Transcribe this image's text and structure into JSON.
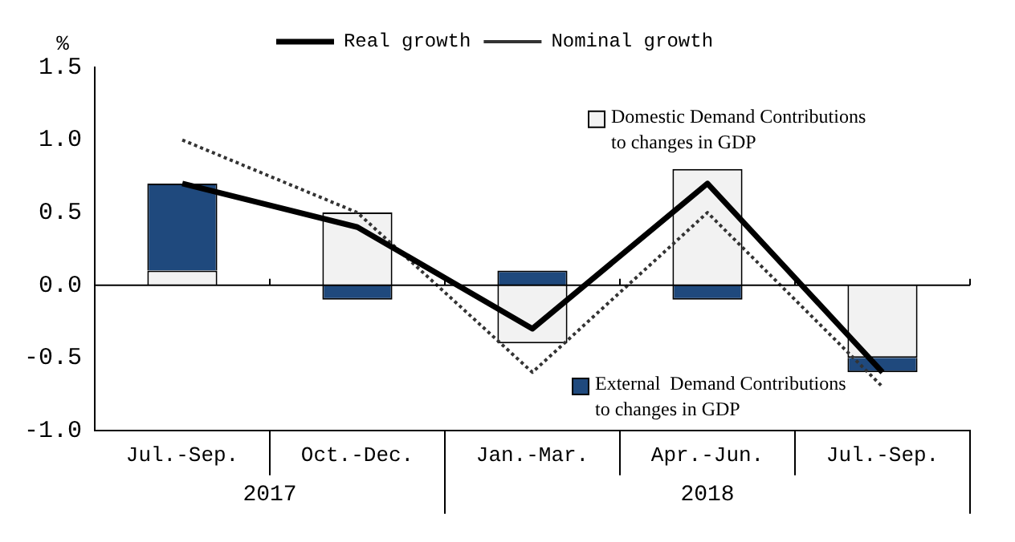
{
  "chart_data": {
    "type": "bar",
    "stacked": true,
    "ylabel": "%",
    "categories": [
      "Jul.-Sep.",
      "Oct.-Dec.",
      "Jan.-Mar.",
      "Apr.-Jun.",
      "Jul.-Sep."
    ],
    "series": [
      {
        "name": "Domestic Demand Contributions to changes in GDP",
        "color": "#f2f2f2",
        "values": [
          0.1,
          0.5,
          -0.4,
          0.8,
          -0.5
        ]
      },
      {
        "name": "External  Demand Contributions to changes in GDP",
        "color": "#1f497d",
        "values": [
          0.6,
          -0.1,
          0.1,
          -0.1,
          -0.1
        ]
      },
      {
        "name": "Real growth",
        "type": "line",
        "color": "#000000",
        "line_style": "solid",
        "values": [
          0.7,
          0.4,
          -0.3,
          0.7,
          -0.6
        ]
      },
      {
        "name": "Nominal growth",
        "type": "line",
        "color": "#333333",
        "line_style": "dotted",
        "values": [
          1.0,
          0.5,
          -0.6,
          0.5,
          -0.7
        ]
      }
    ],
    "ylim": [
      -1.0,
      1.5
    ],
    "yticks": [
      {
        "value": -1,
        "label": "-1.0"
      },
      {
        "value": -0.5,
        "label": "-0.5"
      },
      {
        "value": 0,
        "label": "0.0"
      },
      {
        "value": 0.5,
        "label": "0.5"
      },
      {
        "value": 1,
        "label": "1.0"
      },
      {
        "value": 1.5,
        "label": "1.5"
      }
    ],
    "ref_lines": [
      {
        "axis": "y",
        "value": 0
      }
    ],
    "annotations": [
      "2017",
      "2018"
    ],
    "grid": false,
    "legend": "top",
    "marker": "none"
  }
}
